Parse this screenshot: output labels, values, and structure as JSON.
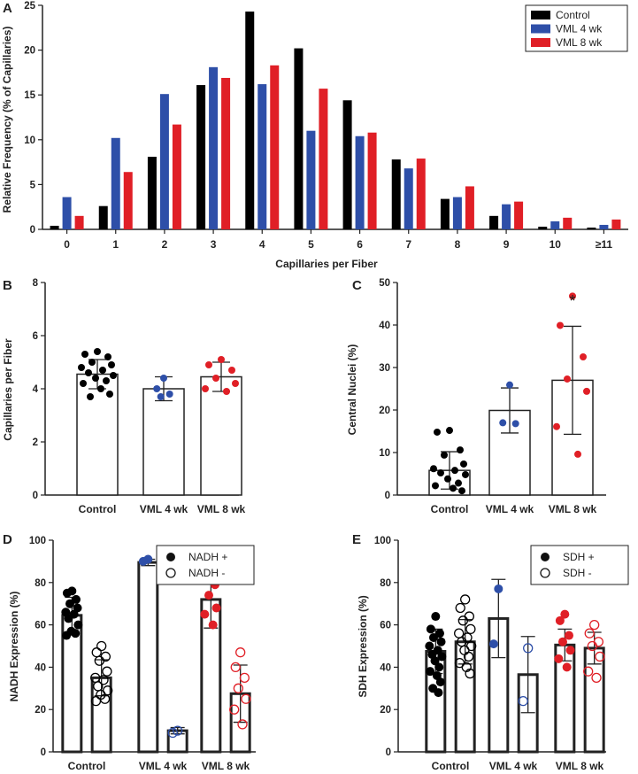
{
  "panels": {
    "A": "A",
    "B": "B",
    "C": "C",
    "D": "D",
    "E": "E"
  },
  "colors": {
    "control": "#000000",
    "vml4": "#2e4fa8",
    "vml8": "#e01f26"
  },
  "chart_data": [
    {
      "panel": "A",
      "type": "bar",
      "title": "",
      "xlabel": "Capillaries per Fiber",
      "ylabel": "Relative Frequency (% of Capillaries)",
      "ylim": [
        0,
        25
      ],
      "yticks": [
        0,
        5,
        10,
        15,
        20,
        25
      ],
      "categories": [
        "0",
        "1",
        "2",
        "3",
        "4",
        "5",
        "6",
        "7",
        "8",
        "9",
        "10",
        "≥11"
      ],
      "series": [
        {
          "name": "Control",
          "values": [
            0.4,
            2.6,
            8.1,
            16.1,
            24.3,
            20.2,
            14.4,
            7.8,
            3.4,
            1.5,
            0.3,
            0.2
          ]
        },
        {
          "name": "VML 4 wk",
          "values": [
            3.6,
            10.2,
            15.1,
            18.1,
            16.2,
            11.0,
            10.4,
            6.8,
            3.6,
            2.8,
            0.9,
            0.5
          ]
        },
        {
          "name": "VML 8 wk",
          "values": [
            1.5,
            6.4,
            11.7,
            16.9,
            18.3,
            15.7,
            10.8,
            7.9,
            4.8,
            3.1,
            1.3,
            1.1
          ]
        }
      ],
      "legend": [
        "Control",
        "VML 4 wk",
        "VML 8 wk"
      ],
      "legend_position": "top-right"
    },
    {
      "panel": "B",
      "type": "bar",
      "xlabel": "",
      "ylabel": "Capillaries per Fiber",
      "ylim": [
        0,
        8
      ],
      "yticks": [
        0,
        2,
        4,
        6,
        8
      ],
      "categories": [
        "Control",
        "VML 4 wk",
        "VML 8 wk"
      ],
      "means": [
        4.55,
        4.0,
        4.45
      ],
      "sd": [
        0.55,
        0.45,
        0.55
      ],
      "points": [
        [
          5.4,
          5.3,
          5.2,
          5.0,
          4.9,
          4.8,
          4.7,
          4.6,
          4.5,
          4.4,
          4.3,
          4.2,
          4.0,
          3.8,
          3.7
        ],
        [
          4.4,
          4.0,
          3.8,
          3.7
        ],
        [
          5.1,
          4.9,
          4.7,
          4.4,
          4.2,
          4.0,
          3.9
        ]
      ]
    },
    {
      "panel": "C",
      "type": "bar",
      "xlabel": "",
      "ylabel": "Central Nuclei (%)",
      "ylim": [
        0,
        50
      ],
      "yticks": [
        0,
        10,
        20,
        30,
        40,
        50
      ],
      "categories": [
        "Control",
        "VML 4 wk",
        "VML 8 wk"
      ],
      "means": [
        5.8,
        19.9,
        27.0
      ],
      "sd": [
        4.4,
        5.3,
        12.7
      ],
      "points": [
        [
          15.2,
          14.8,
          10.6,
          9.4,
          7.3,
          6.2,
          5.8,
          5.2,
          4.8,
          3.8,
          2.8,
          2.2,
          1.6,
          1.0
        ],
        [
          25.9,
          17.0,
          16.8
        ],
        [
          46.8,
          39.9,
          32.5,
          27.3,
          24.4,
          16.1,
          9.6
        ]
      ],
      "annotation": "*"
    },
    {
      "panel": "D",
      "type": "bar",
      "xlabel": "",
      "ylabel": "NADH Expression (%)",
      "ylim": [
        0,
        100
      ],
      "yticks": [
        0,
        20,
        40,
        60,
        80,
        100
      ],
      "categories": [
        "Control",
        "VML 4 wk",
        "VML 8 wk"
      ],
      "series": [
        {
          "name": "NADH +",
          "fill": "filled",
          "means": [
            64.5,
            89.5,
            72.0
          ],
          "sd": [
            8.5,
            1.5,
            13.5
          ],
          "points": [
            [
              76,
              75,
              72,
              70,
              68,
              66,
              65,
              63,
              60,
              57,
              56,
              55
            ],
            [
              91,
              90
            ],
            [
              88,
              86,
              79,
              74,
              68,
              65,
              60
            ]
          ]
        },
        {
          "name": "NADH -",
          "fill": "open",
          "means": [
            35.0,
            10.0,
            27.5
          ],
          "sd": [
            8.5,
            1.5,
            13.5
          ],
          "points": [
            [
              50,
              47,
              45,
              43,
              38,
              35,
              34,
              31,
              29,
              27,
              25,
              24
            ],
            [
              10,
              9
            ],
            [
              47,
              40,
              35,
              30,
              25,
              20,
              13
            ]
          ]
        }
      ],
      "legend": [
        "NADH +",
        "NADH -"
      ],
      "legend_position": "top-right"
    },
    {
      "panel": "E",
      "type": "bar",
      "xlabel": "",
      "ylabel": "SDH Expression (%)",
      "ylim": [
        0,
        100
      ],
      "yticks": [
        0,
        20,
        40,
        60,
        80,
        100
      ],
      "categories": [
        "Control",
        "VML 4 wk",
        "VML 8 wk"
      ],
      "series": [
        {
          "name": "SDH +",
          "fill": "filled",
          "means": [
            47.5,
            63.0,
            50.5
          ],
          "sd": [
            10.5,
            18.5,
            7.5
          ],
          "points": [
            [
              64,
              58,
              56,
              54,
              52,
              50,
              48,
              46,
              45,
              43,
              40,
              38,
              36,
              33,
              30,
              28
            ],
            [
              77,
              51
            ],
            [
              65,
              62,
              55,
              52,
              48,
              44,
              40
            ]
          ]
        },
        {
          "name": "SDH -",
          "fill": "open",
          "means": [
            52.0,
            36.5,
            49.0
          ],
          "sd": [
            10.5,
            18.0,
            7.5
          ],
          "points": [
            [
              72,
              68,
              64,
              62,
              58,
              56,
              54,
              52,
              50,
              48,
              45,
              42,
              40,
              37
            ],
            [
              49,
              24
            ],
            [
              60,
              56,
              52,
              50,
              45,
              38,
              35
            ]
          ]
        }
      ],
      "legend": [
        "SDH +",
        "SDH -"
      ],
      "legend_position": "top-right"
    }
  ]
}
